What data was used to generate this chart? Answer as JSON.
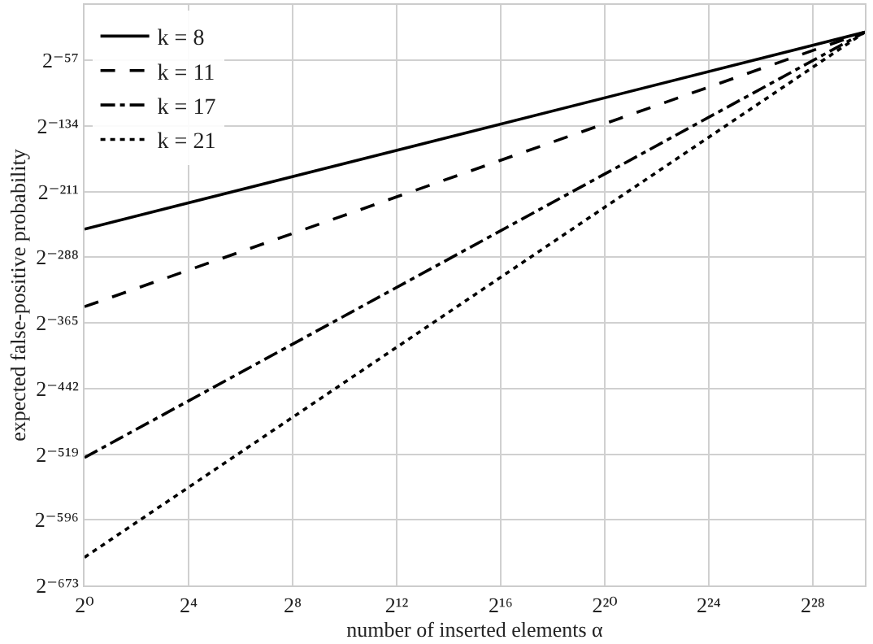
{
  "chart_data": {
    "type": "line",
    "xlabel": "number of inserted elements α",
    "ylabel": "expected false-positive probability",
    "log": "xy",
    "xlim": [
      1,
      1073741824
    ],
    "ylim": [
      2.5516e-203,
      256
    ],
    "xticks": [
      {
        "value": 1,
        "label": "2⁰"
      },
      {
        "value": 16,
        "label": "2⁴"
      },
      {
        "value": 256,
        "label": "2⁸"
      },
      {
        "value": 4096,
        "label": "2¹²"
      },
      {
        "value": 65536,
        "label": "2¹⁶"
      },
      {
        "value": 1048576,
        "label": "2²⁰"
      },
      {
        "value": 16777216,
        "label": "2²⁴"
      },
      {
        "value": 268435456,
        "label": "2²⁸"
      }
    ],
    "yticks": [
      {
        "value": 2.5516e-203,
        "label": "2⁻⁶⁷³"
      },
      {
        "value": 3.8559e-180,
        "label": "2⁻⁵⁹⁶"
      },
      {
        "value": 5.8268e-157,
        "label": "2⁻⁵¹⁹"
      },
      {
        "value": 8.8053e-134,
        "label": "2⁻⁴⁴²"
      },
      {
        "value": 1.3306e-110,
        "label": "2⁻³⁶⁵"
      },
      {
        "value": 2.0108e-87,
        "label": "2⁻²⁸⁸"
      },
      {
        "value": 3.0386e-64,
        "label": "2⁻²¹¹"
      },
      {
        "value": 4.5918e-41,
        "label": "2⁻¹³⁴"
      },
      {
        "value": 6.9389e-18,
        "label": "2⁻⁵⁷"
      }
    ],
    "x": [
      1,
      1073741824
    ],
    "series": [
      {
        "name": "k = 8",
        "color": "#000000",
        "line_style": "solid",
        "values": [
          1.7272e-77,
          5.9605e-08
        ]
      },
      {
        "name": "k = 11",
        "color": "#000000",
        "line_style": "dashed",
        "values": [
          6.9763e-105,
          5.9605e-08
        ]
      },
      {
        "name": "k = 17",
        "color": "#000000",
        "line_style": "dashdot",
        "values": [
          3.6418e-158,
          5.9605e-08
        ]
      },
      {
        "name": "k = 21",
        "color": "#000000",
        "line_style": "dotted",
        "values": [
          2.1918e-193,
          5.9605e-08
        ]
      }
    ],
    "grid": true,
    "legend": "top left",
    "marker": "none"
  }
}
